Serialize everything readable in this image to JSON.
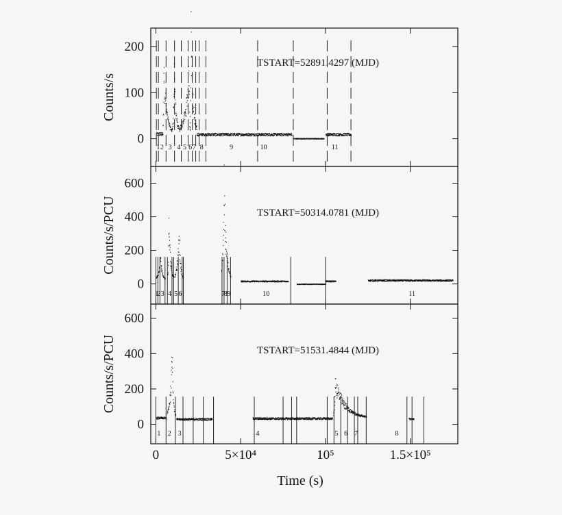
{
  "chart_data": {
    "type": "scatter",
    "xlabel": "Time (s)",
    "xlim": [
      -3000,
      178000
    ],
    "x_ticks": [
      {
        "value": 0,
        "label": "0"
      },
      {
        "value": 50000,
        "label": "5×10⁴"
      },
      {
        "value": 100000,
        "label": "10⁵"
      },
      {
        "value": 150000,
        "label": "1.5×10⁵"
      }
    ],
    "panels": [
      {
        "ylabel": "Counts/s",
        "ylim": [
          -60,
          240
        ],
        "y_ticks": [
          0,
          100,
          200
        ],
        "annotation": "TSTART=52891.4297 (MJD)",
        "boundary_style": "dashed",
        "boundaries": [
          300,
          1500,
          6000,
          11000,
          15000,
          19000,
          21500,
          23500,
          25500,
          29500,
          60000,
          81000,
          101000,
          115000
        ],
        "segment_labels": [
          {
            "x": 1400,
            "label": "1"
          },
          {
            "x": 3600,
            "label": "2"
          },
          {
            "x": 8300,
            "label": "3"
          },
          {
            "x": 13500,
            "label": "4"
          },
          {
            "x": 17000,
            "label": "5"
          },
          {
            "x": 20300,
            "label": "6"
          },
          {
            "x": 22600,
            "label": "7"
          },
          {
            "x": 27000,
            "label": "8"
          },
          {
            "x": 44500,
            "label": "9"
          },
          {
            "x": 63500,
            "label": "10"
          },
          {
            "x": 105500,
            "label": "11"
          }
        ],
        "series": [
          {
            "type": "segment",
            "x": [
              0,
              4000
            ],
            "base": 10,
            "decay": 0,
            "amp": 4
          },
          {
            "type": "flare",
            "x": [
              4000,
              9500
            ],
            "base": 12,
            "peak": 150,
            "t_peak": 4500
          },
          {
            "type": "flare",
            "x": [
              9500,
              14000
            ],
            "base": 12,
            "peak": 135,
            "t_peak": 10600
          },
          {
            "type": "flare",
            "x": [
              14000,
              20000
            ],
            "base": 12,
            "peak": 140,
            "t_peak": 19500
          },
          {
            "type": "flare",
            "x": [
              20000,
              24000
            ],
            "base": 12,
            "peak": 225,
            "t_peak": 20500
          },
          {
            "type": "segment",
            "x": [
              24000,
              80000
            ],
            "base": 9,
            "decay": 0,
            "amp": 3
          },
          {
            "type": "segment",
            "x": [
              81000,
              99000
            ],
            "base": 0,
            "decay": 0,
            "amp": 1
          },
          {
            "type": "segment",
            "x": [
              100000,
              115000
            ],
            "base": 9,
            "decay": 0,
            "amp": 3
          }
        ]
      },
      {
        "ylabel": "Counts/s/PCU",
        "ylim": [
          -120,
          700
        ],
        "y_ticks": [
          0,
          200,
          400,
          600
        ],
        "annotation": "TSTART=50314.0781 (MJD)",
        "boundary_style": "solid",
        "boundaries": [
          0,
          1200,
          2400,
          5400,
          6800,
          9500,
          10500,
          13200,
          15500,
          16200,
          39000,
          40200,
          42000,
          44000,
          79500,
          100000
        ],
        "segment_labels": [
          {
            "x": 600,
            "label": "1"
          },
          {
            "x": 1800,
            "label": "2"
          },
          {
            "x": 3900,
            "label": "3"
          },
          {
            "x": 8100,
            "label": "4"
          },
          {
            "x": 11800,
            "label": "5"
          },
          {
            "x": 14300,
            "label": "6"
          },
          {
            "x": 39600,
            "label": "7"
          },
          {
            "x": 41100,
            "label": "8"
          },
          {
            "x": 43000,
            "label": "9"
          },
          {
            "x": 65000,
            "label": "10"
          },
          {
            "x": 151000,
            "label": "11"
          }
        ],
        "series": [
          {
            "type": "flare",
            "x": [
              0,
              5400
            ],
            "base": 25,
            "peak": 150,
            "t_peak": 2500
          },
          {
            "type": "flare",
            "x": [
              6800,
              10500
            ],
            "base": 25,
            "peak": 350,
            "t_peak": 7500
          },
          {
            "type": "flare",
            "x": [
              11000,
              16000
            ],
            "base": 25,
            "peak": 300,
            "t_peak": 13500
          },
          {
            "type": "flare",
            "x": [
              38500,
              44000
            ],
            "base": 25,
            "peak": 570,
            "t_peak": 40000
          },
          {
            "type": "segment",
            "x": [
              50000,
              78000
            ],
            "base": 15,
            "decay": 0,
            "amp": 4
          },
          {
            "type": "segment",
            "x": [
              83000,
              100000
            ],
            "base": -2,
            "decay": 0,
            "amp": 2
          },
          {
            "type": "segment",
            "x": [
              100000,
              106000
            ],
            "base": 15,
            "decay": 0,
            "amp": 4
          },
          {
            "type": "segment",
            "x": [
              125000,
              175000
            ],
            "base": 20,
            "decay": 0,
            "amp": 5
          }
        ]
      },
      {
        "ylabel": "Counts/s/PCU",
        "ylim": [
          -110,
          680
        ],
        "y_ticks": [
          0,
          200,
          400,
          600
        ],
        "annotation": "TSTART=51531.4844 (MJD)",
        "boundary_style": "solid",
        "boundaries": [
          0,
          6000,
          11500,
          16000,
          22000,
          28000,
          34000,
          58000,
          75000,
          80000,
          83000,
          101000,
          105000,
          109000,
          113000,
          117000,
          119000,
          124000,
          148000,
          151000,
          158000
        ],
        "segment_labels": [
          {
            "x": 1800,
            "label": "1"
          },
          {
            "x": 8000,
            "label": "2"
          },
          {
            "x": 14000,
            "label": "3"
          },
          {
            "x": 60000,
            "label": "4"
          },
          {
            "x": 106500,
            "label": "5"
          },
          {
            "x": 112000,
            "label": "6"
          },
          {
            "x": 118000,
            "label": "7"
          },
          {
            "x": 142000,
            "label": "8"
          }
        ],
        "series": [
          {
            "type": "segment",
            "x": [
              0,
              6000
            ],
            "base": 35,
            "decay": 0,
            "amp": 6
          },
          {
            "type": "flare",
            "x": [
              6500,
              11500
            ],
            "base": 35,
            "peak": 390,
            "t_peak": 9500
          },
          {
            "type": "segment",
            "x": [
              12000,
              33000
            ],
            "base": 28,
            "decay": 0,
            "amp": 6
          },
          {
            "type": "segment",
            "x": [
              57000,
              104000
            ],
            "base": 32,
            "decay": 0,
            "amp": 6
          },
          {
            "type": "flare",
            "x": [
              104500,
              124000
            ],
            "base": 35,
            "peak": 230,
            "t_peak": 105500
          },
          {
            "type": "segment",
            "x": [
              149000,
              152000
            ],
            "base": 30,
            "decay": 0,
            "amp": 5
          }
        ]
      }
    ]
  }
}
